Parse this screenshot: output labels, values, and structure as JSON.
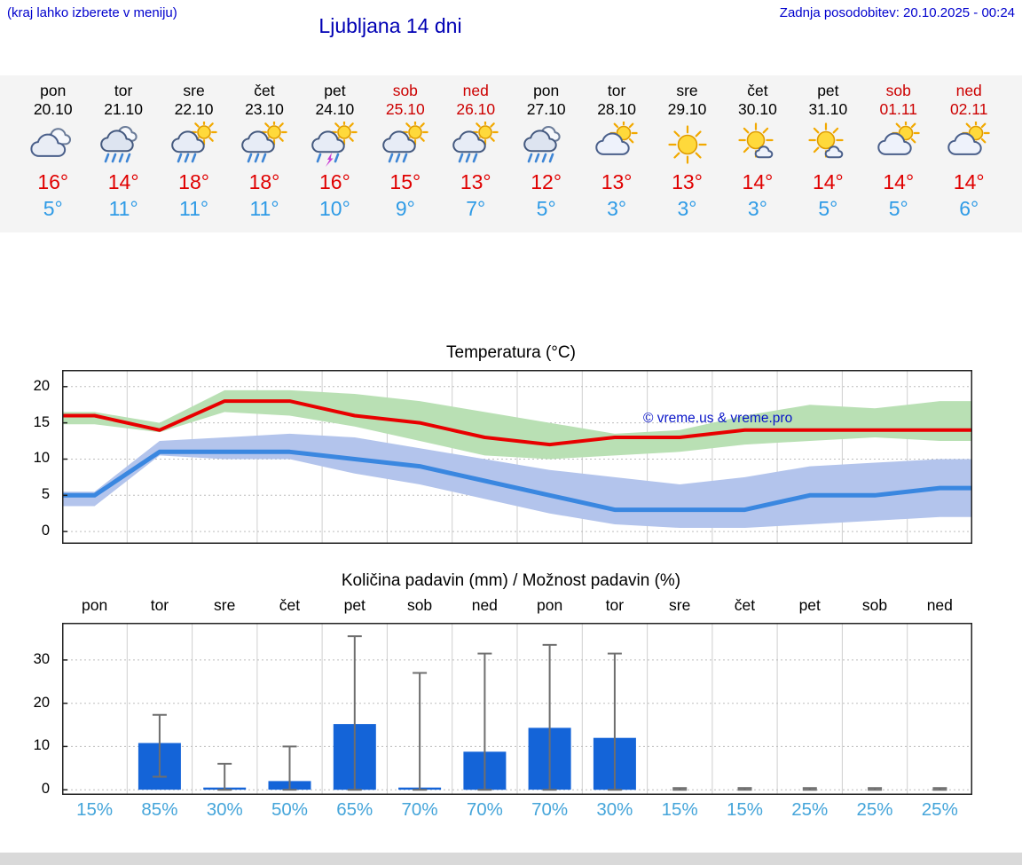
{
  "header": {
    "hint": "(kraj lahko izberete v meniju)",
    "title": "Ljubljana 14 dni",
    "updated": "Zadnja posodobitev: 20.10.2025 - 00:24"
  },
  "colors": {
    "accent_blue": "#0000cd",
    "temp_max_red": "#e00000",
    "temp_min_blue": "#2f9be6",
    "percent_blue": "#45a5da",
    "bar_blue": "#1464d8",
    "band_green": "#b9e0b4",
    "band_blue": "#b3c4ec",
    "line_red": "#e80000",
    "line_blue": "#3a87e0"
  },
  "forecast": {
    "days": [
      {
        "name": "pon",
        "date": "20.10",
        "weekend": false,
        "icon": "cloudy",
        "tmax": "16°",
        "tmin": "5°"
      },
      {
        "name": "tor",
        "date": "21.10",
        "weekend": false,
        "icon": "rain",
        "tmax": "14°",
        "tmin": "11°"
      },
      {
        "name": "sre",
        "date": "22.10",
        "weekend": false,
        "icon": "sun-shower",
        "tmax": "18°",
        "tmin": "11°"
      },
      {
        "name": "čet",
        "date": "23.10",
        "weekend": false,
        "icon": "sun-shower",
        "tmax": "18°",
        "tmin": "11°"
      },
      {
        "name": "pet",
        "date": "24.10",
        "weekend": false,
        "icon": "sun-thunder",
        "tmax": "16°",
        "tmin": "10°"
      },
      {
        "name": "sob",
        "date": "25.10",
        "weekend": true,
        "icon": "sun-shower",
        "tmax": "15°",
        "tmin": "9°"
      },
      {
        "name": "ned",
        "date": "26.10",
        "weekend": true,
        "icon": "sun-shower",
        "tmax": "13°",
        "tmin": "7°"
      },
      {
        "name": "pon",
        "date": "27.10",
        "weekend": false,
        "icon": "rain",
        "tmax": "12°",
        "tmin": "5°"
      },
      {
        "name": "tor",
        "date": "28.10",
        "weekend": false,
        "icon": "partly-cloudy",
        "tmax": "13°",
        "tmin": "3°"
      },
      {
        "name": "sre",
        "date": "29.10",
        "weekend": false,
        "icon": "sunny",
        "tmax": "13°",
        "tmin": "3°"
      },
      {
        "name": "čet",
        "date": "30.10",
        "weekend": false,
        "icon": "mostly-sunny",
        "tmax": "14°",
        "tmin": "3°"
      },
      {
        "name": "pet",
        "date": "31.10",
        "weekend": false,
        "icon": "mostly-sunny",
        "tmax": "14°",
        "tmin": "5°"
      },
      {
        "name": "sob",
        "date": "01.11",
        "weekend": true,
        "icon": "partly-cloudy",
        "tmax": "14°",
        "tmin": "5°"
      },
      {
        "name": "ned",
        "date": "02.11",
        "weekend": true,
        "icon": "partly-cloudy",
        "tmax": "14°",
        "tmin": "6°"
      }
    ]
  },
  "temp_section": {
    "title": "Temperatura (°C)",
    "watermark": "© vreme.us & vreme.pro"
  },
  "precip_section": {
    "title": "Količina padavin (mm) / Možnost padavin (%)"
  },
  "chart_data": [
    {
      "type": "line",
      "title": "Temperatura (°C)",
      "categories": [
        "20.10",
        "21.10",
        "22.10",
        "23.10",
        "24.10",
        "25.10",
        "26.10",
        "27.10",
        "28.10",
        "29.10",
        "30.10",
        "31.10",
        "01.11",
        "02.11"
      ],
      "ylim": [
        -2,
        22
      ],
      "yticks": [
        0,
        5,
        10,
        15,
        20
      ],
      "grid": true,
      "series": [
        {
          "name": "max",
          "values": [
            16,
            14,
            18,
            18,
            16,
            15,
            13,
            12,
            13,
            13,
            14,
            14,
            14,
            14
          ]
        },
        {
          "name": "min",
          "values": [
            5,
            11,
            11,
            11,
            10,
            9,
            7,
            5,
            3,
            3,
            3,
            5,
            5,
            6
          ]
        },
        {
          "name": "max_range_upper",
          "values": [
            16.5,
            15,
            19.5,
            19.5,
            19,
            18,
            16.5,
            15,
            13.5,
            14,
            16,
            17.5,
            17,
            18
          ]
        },
        {
          "name": "max_range_lower",
          "values": [
            14.8,
            13.7,
            16.5,
            16,
            14.5,
            12.5,
            10.5,
            10,
            10.5,
            11,
            12,
            12.5,
            13,
            12.5
          ]
        },
        {
          "name": "min_range_upper",
          "values": [
            5.5,
            12.5,
            13,
            13.5,
            13,
            11.5,
            10,
            8.5,
            7.5,
            6.5,
            7.5,
            9,
            9.5,
            10
          ]
        },
        {
          "name": "min_range_lower",
          "values": [
            3.5,
            10.5,
            10,
            10,
            8,
            6.5,
            4.5,
            2.5,
            1,
            0.5,
            0.5,
            1,
            1.5,
            2
          ]
        }
      ]
    },
    {
      "type": "bar",
      "title": "Količina padavin (mm) / Možnost padavin (%)",
      "categories": [
        "pon",
        "tor",
        "sre",
        "čet",
        "pet",
        "sob",
        "ned",
        "pon",
        "tor",
        "sre",
        "čet",
        "pet",
        "sob",
        "ned"
      ],
      "values": [
        0,
        10.8,
        0.5,
        2,
        15.2,
        0.5,
        8.8,
        14.3,
        12,
        0,
        0,
        0,
        0,
        0
      ],
      "range_low": [
        null,
        3,
        0,
        0,
        0,
        0,
        0,
        0,
        0,
        0,
        0,
        0,
        0,
        0
      ],
      "range_high": [
        null,
        17.3,
        6,
        10,
        35.5,
        27,
        31.5,
        33.5,
        31.5,
        0.4,
        0.4,
        0.4,
        0.4,
        0.4
      ],
      "prob_percent": [
        "15%",
        "85%",
        "30%",
        "50%",
        "65%",
        "70%",
        "70%",
        "70%",
        "30%",
        "15%",
        "15%",
        "25%",
        "25%",
        "25%"
      ],
      "ylim": [
        0,
        38
      ],
      "yticks": [
        0,
        10,
        20,
        30
      ],
      "grid": true
    }
  ]
}
